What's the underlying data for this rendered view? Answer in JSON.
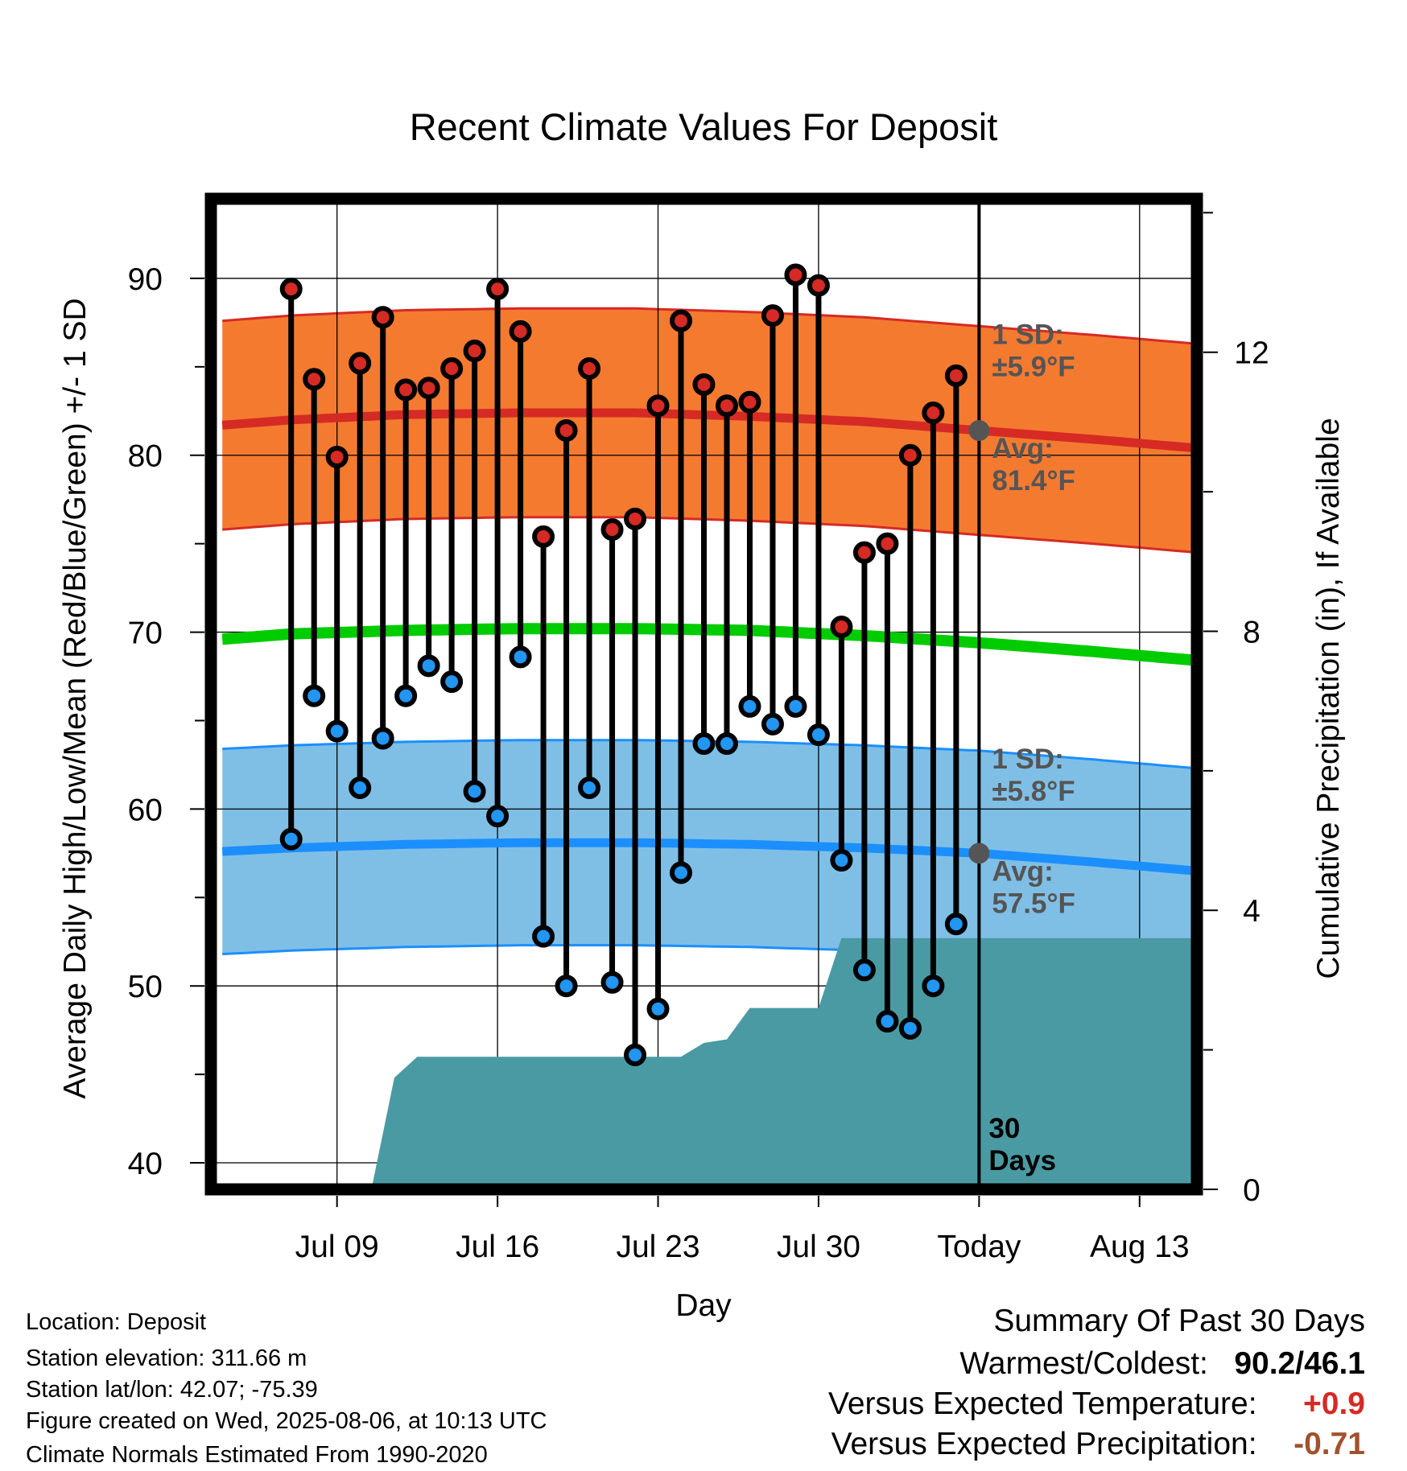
{
  "chart_data": {
    "type": "line",
    "title": "Recent Climate Values For Deposit",
    "xlabel": "Day",
    "ylabel_left": "Average Daily High/Low/Mean (Red/Blue/Green) +/- 1 SD",
    "ylabel_right": "Cumulative Precipitation (in), If Available",
    "ylim_left": [
      38.5,
      94.5
    ],
    "ylim_right": [
      0,
      14.2
    ],
    "xlim_days": [
      -33.5,
      9.5
    ],
    "x_ticks": [
      {
        "day": -28,
        "label": "Jul 09"
      },
      {
        "day": -21,
        "label": "Jul 16"
      },
      {
        "day": -14,
        "label": "Jul 23"
      },
      {
        "day": -7,
        "label": "Jul 30"
      },
      {
        "day": 0,
        "label": "Today"
      },
      {
        "day": 7,
        "label": "Aug 13"
      }
    ],
    "y_ticks_left": [
      "40",
      "50",
      "60",
      "70",
      "80",
      "90"
    ],
    "y_ticks_right": [
      "0",
      "4",
      "8",
      "12"
    ],
    "grid": true,
    "normals": {
      "days": [
        -33,
        -30,
        -25,
        -20,
        -15,
        -10,
        -5,
        0,
        5,
        9.5
      ],
      "high_avg": [
        81.7,
        82.0,
        82.3,
        82.4,
        82.4,
        82.2,
        81.9,
        81.4,
        80.9,
        80.4
      ],
      "low_avg": [
        57.6,
        57.8,
        58.0,
        58.1,
        58.1,
        58.0,
        57.8,
        57.5,
        57.0,
        56.5
      ],
      "mean_avg": [
        69.6,
        69.9,
        70.1,
        70.2,
        70.2,
        70.1,
        69.8,
        69.4,
        68.9,
        68.4
      ],
      "high_sd": 5.9,
      "low_sd": 5.8
    },
    "observed": {
      "days": [
        -30,
        -29,
        -28,
        -27,
        -26,
        -25,
        -24,
        -23,
        -22,
        -21,
        -20,
        -19,
        -18,
        -17,
        -16,
        -15,
        -14,
        -13,
        -12,
        -11,
        -10,
        -9,
        -8,
        -7,
        -6,
        -5,
        -4,
        -3,
        -2,
        -1
      ],
      "high": [
        89.4,
        84.3,
        79.9,
        85.2,
        87.8,
        83.7,
        83.8,
        84.9,
        85.9,
        89.4,
        87.0,
        75.4,
        81.4,
        84.9,
        75.8,
        76.4,
        82.8,
        87.6,
        84.0,
        82.8,
        83.0,
        87.9,
        90.2,
        89.6,
        70.3,
        74.5,
        75.0,
        80.0,
        82.4,
        84.5
      ],
      "low": [
        58.3,
        66.4,
        64.4,
        61.2,
        64.0,
        66.4,
        68.1,
        67.2,
        61.0,
        59.6,
        68.6,
        52.8,
        50.0,
        61.2,
        50.2,
        46.1,
        48.7,
        56.4,
        63.7,
        63.7,
        65.8,
        64.8,
        65.8,
        64.2,
        57.1,
        50.9,
        48.0,
        47.6,
        50.0,
        53.5
      ]
    },
    "precip": {
      "days": [
        -26.5,
        -25.5,
        -24.5,
        -14.5,
        -13.0,
        -12.0,
        -11.0,
        -10.0,
        -9.0,
        -7.0,
        -6.0,
        -5.0,
        -1.0,
        9.5
      ],
      "cumulative": [
        0.0,
        1.6,
        1.9,
        1.9,
        1.9,
        2.1,
        2.15,
        2.6,
        2.6,
        2.6,
        3.6,
        3.6,
        3.6,
        3.6
      ]
    },
    "annotations": {
      "high_sd_line1": "1 SD:",
      "high_sd_line2": "±5.9°F",
      "high_avg_line1": "Avg:",
      "high_avg_line2": "81.4°F",
      "low_sd_line1": "1 SD:",
      "low_sd_line2": "±5.8°F",
      "low_avg_line1": "Avg:",
      "low_avg_line2": "57.5°F",
      "days_line1": "30",
      "days_line2": "Days"
    },
    "colors": {
      "high_band": "#f47a30",
      "high_line": "#d62a24",
      "low_band": "#7fbfe6",
      "low_line": "#1c8fff",
      "mean_line": "#00cc00",
      "precip": "#4a9aa3",
      "annotation": "#555555",
      "high_dot": "#d62a24",
      "low_dot": "#2196f3"
    }
  },
  "footer": {
    "location": "Location: Deposit",
    "elevation": "Station elevation: 311.66 m",
    "latlon": "Station lat/lon: 42.07; -75.39",
    "created": "Figure created on Wed, 2025-08-06, at 10:13 UTC",
    "normals": "Climate Normals Estimated From 1990-2020"
  },
  "summary": {
    "title": "Summary Of Past 30 Days",
    "warm_cold_label": "Warmest/Coldest:",
    "warm_cold_value": "90.2/46.1",
    "temp_label": "Versus Expected Temperature:",
    "temp_value": "+0.9",
    "temp_color": "#d62a24",
    "precip_label": "Versus Expected Precipitation:",
    "precip_value": "-0.71",
    "precip_color": "#a0522d"
  }
}
